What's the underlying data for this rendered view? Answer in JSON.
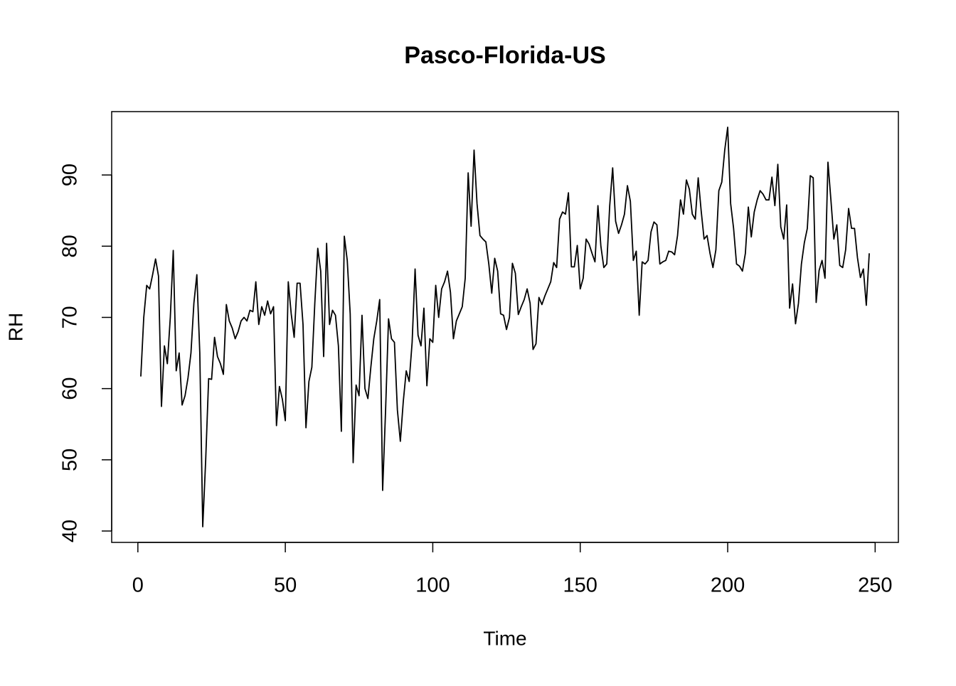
{
  "chart_data": {
    "type": "line",
    "title": "Pasco-Florida-US",
    "x_label": "Time",
    "y_label": "RH",
    "color": "#000000",
    "xlim": [
      -8.88,
      257.88
    ],
    "ylim": [
      38.4,
      98.9
    ],
    "xticks": [
      0,
      50,
      100,
      150,
      200,
      250
    ],
    "yticks": [
      40,
      50,
      60,
      70,
      80,
      90
    ],
    "x": [
      1,
      2,
      3,
      4,
      5,
      6,
      7,
      8,
      9,
      10,
      11,
      12,
      13,
      14,
      15,
      16,
      17,
      18,
      19,
      20,
      21,
      22,
      23,
      24,
      25,
      26,
      27,
      28,
      29,
      30,
      31,
      32,
      33,
      34,
      35,
      36,
      37,
      38,
      39,
      40,
      41,
      42,
      43,
      44,
      45,
      46,
      47,
      48,
      49,
      50,
      51,
      52,
      53,
      54,
      55,
      56,
      57,
      58,
      59,
      60,
      61,
      62,
      63,
      64,
      65,
      66,
      67,
      68,
      69,
      70,
      71,
      72,
      73,
      74,
      75,
      76,
      77,
      78,
      79,
      80,
      81,
      82,
      83,
      84,
      85,
      86,
      87,
      88,
      89,
      90,
      91,
      92,
      93,
      94,
      95,
      96,
      97,
      98,
      99,
      100,
      101,
      102,
      103,
      104,
      105,
      106,
      107,
      108,
      109,
      110,
      111,
      112,
      113,
      114,
      115,
      116,
      117,
      118,
      119,
      120,
      121,
      122,
      123,
      124,
      125,
      126,
      127,
      128,
      129,
      130,
      131,
      132,
      133,
      134,
      135,
      136,
      137,
      138,
      139,
      140,
      141,
      142,
      143,
      144,
      145,
      146,
      147,
      148,
      149,
      150,
      151,
      152,
      153,
      154,
      155,
      156,
      157,
      158,
      159,
      160,
      161,
      162,
      163,
      164,
      165,
      166,
      167,
      168,
      169,
      170,
      171,
      172,
      173,
      174,
      175,
      176,
      177,
      178,
      179,
      180,
      181,
      182,
      183,
      184,
      185,
      186,
      187,
      188,
      189,
      190,
      191,
      192,
      193,
      194,
      195,
      196,
      197,
      198,
      199,
      200,
      201,
      202,
      203,
      204,
      205,
      206,
      207,
      208,
      209,
      210,
      211,
      212,
      213,
      214,
      215,
      216,
      217,
      218,
      219,
      220,
      221,
      222,
      223,
      224,
      225,
      226,
      227,
      228,
      229,
      230,
      231,
      232,
      233,
      234,
      235,
      236,
      237,
      238,
      239,
      240,
      241,
      242,
      243,
      244,
      245,
      246,
      247,
      248
    ],
    "values": [
      61.7,
      70,
      74.5,
      74,
      76,
      78.2,
      75.8,
      57.5,
      66,
      63.5,
      70,
      79.4,
      62.5,
      65,
      57.7,
      59,
      61.5,
      65,
      72,
      76,
      65,
      40.6,
      50,
      61.4,
      61.3,
      67.2,
      64.5,
      63.5,
      62,
      71.8,
      69.5,
      68.5,
      67,
      68,
      69.5,
      70,
      69.5,
      71,
      70.8,
      75,
      69,
      71.5,
      70.3,
      72.3,
      70.5,
      71.5,
      54.8,
      60.3,
      58.5,
      55.5,
      75,
      70.5,
      67.2,
      74.8,
      74.8,
      69,
      54.5,
      61,
      63,
      72,
      79.7,
      76.5,
      64.5,
      80.4,
      69,
      71,
      70.3,
      66,
      54,
      81.4,
      78,
      70.5,
      49.6,
      60.5,
      59,
      70.3,
      60,
      58.6,
      63,
      67,
      69.5,
      72.5,
      45.7,
      57,
      69.8,
      67,
      66.5,
      57,
      52.6,
      58.2,
      62.5,
      61,
      66.5,
      76.8,
      67.5,
      66,
      71.3,
      60.4,
      67,
      66.5,
      74.5,
      70,
      74,
      75,
      76.5,
      73.5,
      67,
      69.5,
      70.5,
      71.5,
      75.5,
      90.3,
      82.8,
      93.5,
      86,
      81.5,
      81,
      80.6,
      77.5,
      73.4,
      78.3,
      76.5,
      70.5,
      70.3,
      68.3,
      70,
      77.6,
      76.2,
      70.4,
      71.5,
      72.5,
      74,
      72,
      65.5,
      66.3,
      72.8,
      71.8,
      73,
      74,
      75,
      77.7,
      77,
      83.8,
      84.8,
      84.5,
      87.5,
      77.1,
      77.1,
      80.1,
      74,
      75.5,
      81,
      80.3,
      79,
      77.8,
      85.7,
      80,
      77,
      77.5,
      85.7,
      91,
      83.5,
      81.8,
      83,
      84.5,
      88.5,
      86.3,
      78,
      79.3,
      70.3,
      77.8,
      77.5,
      78,
      82,
      83.4,
      83,
      77.5,
      77.8,
      78,
      79.3,
      79.2,
      78.8,
      81.5,
      86.5,
      84.5,
      89.3,
      88,
      84.5,
      83.8,
      89.6,
      85,
      81,
      81.5,
      79,
      77,
      79.5,
      87.8,
      89,
      93.5,
      96.7,
      86,
      82.5,
      77.5,
      77.2,
      76.5,
      79,
      85.5,
      81.3,
      84.8,
      86.5,
      87.8,
      87.3,
      86.5,
      86.5,
      89.7,
      85.7,
      91.5,
      82.7,
      81,
      85.8,
      71.3,
      74.7,
      69.1,
      72,
      77.5,
      80.5,
      82.5,
      89.9,
      89.6,
      72.1,
      76.6,
      78,
      75.5,
      91.8,
      86.5,
      81,
      83,
      77.3,
      77,
      79.5,
      85.3,
      82.5,
      82.5,
      78.4,
      75.6,
      76.8,
      71.7,
      79
    ]
  }
}
